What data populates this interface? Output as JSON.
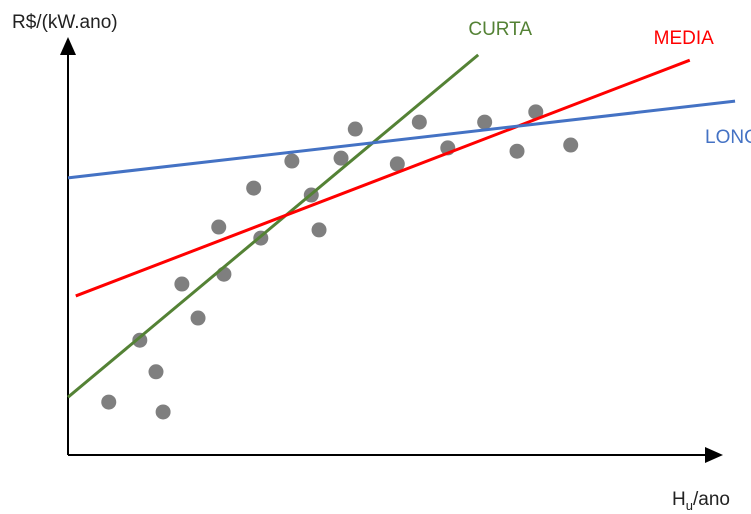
{
  "chart_data": {
    "type": "scatter",
    "y_label": "R$/(kW.ano)",
    "x_label": {
      "base": "H",
      "sub": "u",
      "rest": "/ano"
    },
    "xlim": [
      0,
      100
    ],
    "ylim": [
      0,
      100
    ],
    "points": {
      "color": "#7f7f7f",
      "x": [
        6.3,
        14.7,
        13.6,
        11.1,
        20.1,
        17.6,
        24.1,
        23.3,
        28.7,
        29.8,
        34.6,
        37.6,
        38.8,
        42.2,
        44.4,
        50.9,
        54.3,
        58.7,
        64.4,
        69.4,
        72.3,
        77.7
      ],
      "y": [
        12.9,
        10.5,
        20.3,
        28.0,
        33.4,
        41.7,
        44.1,
        55.6,
        65.1,
        52.9,
        71.7,
        63.4,
        54.9,
        72.4,
        79.5,
        71.0,
        81.2,
        74.9,
        81.2,
        74.1,
        83.7,
        75.6
      ]
    },
    "series": [
      {
        "name": "CURTA",
        "color": "#548235",
        "x": [
          0,
          63.4
        ],
        "values": [
          14.1,
          97.6
        ]
      },
      {
        "name": "MEDIA",
        "color": "#ff0000",
        "x": [
          1.2,
          96.1
        ],
        "values": [
          38.8,
          96.3
        ]
      },
      {
        "name": "LONGA",
        "color": "#4472c4",
        "x": [
          0,
          103.1
        ],
        "values": [
          67.6,
          86.3
        ]
      }
    ]
  }
}
